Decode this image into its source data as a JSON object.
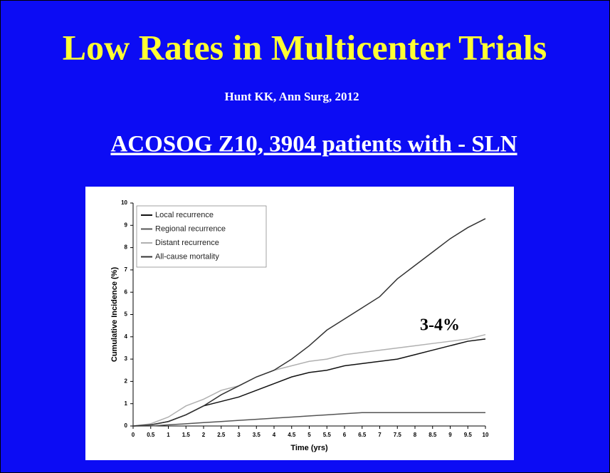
{
  "slide": {
    "title": "Low Rates in Multicenter Trials",
    "citation": "Hunt KK, Ann  Surg, 2012",
    "heading": "ACOSOG Z10, 3904 patients with - SLN"
  },
  "chart_data": {
    "type": "line",
    "xlabel": "Time (yrs)",
    "ylabel": "Cumulative Incidence (%)",
    "annotation": "3-4%",
    "x": [
      0,
      0.5,
      1,
      1.5,
      2,
      2.5,
      3,
      3.5,
      4,
      4.5,
      5,
      5.5,
      6,
      6.5,
      7,
      7.5,
      8,
      8.5,
      9,
      9.5,
      10
    ],
    "series": [
      {
        "name": "Local recurrence",
        "color": "#111111",
        "values": [
          0,
          0.05,
          0.2,
          0.5,
          0.9,
          1.1,
          1.3,
          1.6,
          1.9,
          2.2,
          2.4,
          2.5,
          2.7,
          2.8,
          2.9,
          3.0,
          3.2,
          3.4,
          3.6,
          3.8,
          3.9
        ]
      },
      {
        "name": "Regional recurrence",
        "color": "#555555",
        "values": [
          0,
          0,
          0.05,
          0.1,
          0.15,
          0.2,
          0.25,
          0.3,
          0.35,
          0.4,
          0.45,
          0.5,
          0.55,
          0.6,
          0.6,
          0.6,
          0.6,
          0.6,
          0.6,
          0.6,
          0.6
        ]
      },
      {
        "name": "Distant recurrence",
        "color": "#b0b0b0",
        "values": [
          0,
          0.1,
          0.4,
          0.9,
          1.2,
          1.6,
          1.8,
          2.2,
          2.5,
          2.7,
          2.9,
          3.0,
          3.2,
          3.3,
          3.4,
          3.5,
          3.6,
          3.7,
          3.8,
          3.9,
          4.1
        ]
      },
      {
        "name": "All-cause mortality",
        "color": "#333333",
        "values": [
          0,
          0.05,
          0.2,
          0.5,
          0.9,
          1.4,
          1.8,
          2.2,
          2.5,
          3.0,
          3.6,
          4.3,
          4.8,
          5.3,
          5.8,
          6.6,
          7.2,
          7.8,
          8.4,
          8.9,
          9.3
        ]
      }
    ],
    "xlim": [
      0,
      10
    ],
    "xticks": [
      0,
      0.5,
      1,
      1.5,
      2,
      2.5,
      3,
      3.5,
      4,
      4.5,
      5,
      5.5,
      6,
      6.5,
      7,
      7.5,
      8,
      8.5,
      9,
      9.5,
      10
    ],
    "ylim": [
      0,
      10
    ],
    "yticks": [
      0,
      1,
      2,
      3,
      4,
      5,
      6,
      7,
      8,
      9,
      10
    ],
    "grid": false
  }
}
